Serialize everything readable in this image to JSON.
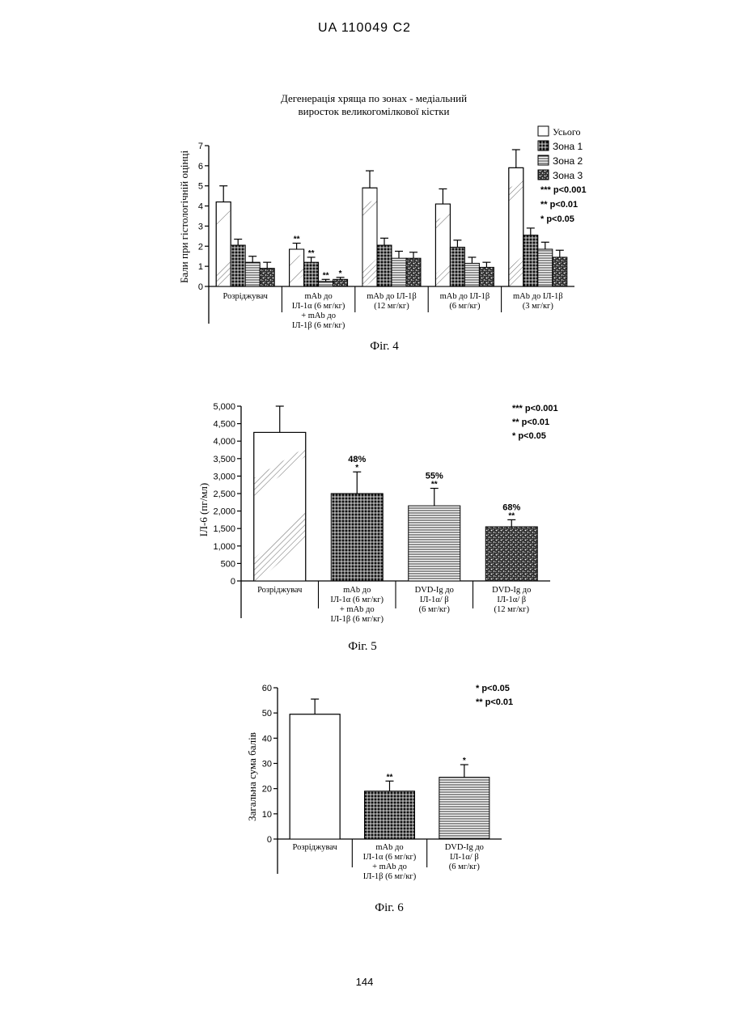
{
  "page": {
    "header": "UA   110049   C2",
    "page_number": "144"
  },
  "chart_data": [
    {
      "type": "bar",
      "title": "Дегенерація хряща по зонах - медіальний виросток великогомілкової кістки",
      "title_lines": [
        "Дегенерація хряща по зонах - медіальний",
        "виросток великогомілкової кістки"
      ],
      "ylabel": "Бали при гістологічній оцінці",
      "ylim": [
        0,
        7
      ],
      "yticks": [
        "0",
        "1",
        "2",
        "3",
        "4",
        "5",
        "6",
        "7"
      ],
      "caption": "Фіг. 4",
      "legend_position": "top-right",
      "groups": [
        {
          "label_lines": [
            "Розріджувач"
          ]
        },
        {
          "label_lines": [
            "mAb до",
            "ІЛ-1α (6 мг/кг)",
            "+ mAb до",
            "ІЛ-1β (6 мг/кг)"
          ]
        },
        {
          "label_lines": [
            "mAb до ІЛ-1β",
            "(12 мг/кг)"
          ]
        },
        {
          "label_lines": [
            "mAb до ІЛ-1β",
            "(6 мг/кг)"
          ]
        },
        {
          "label_lines": [
            "mAb до ІЛ-1β",
            "(3 мг/кг)"
          ]
        }
      ],
      "series": [
        {
          "name": "Усього",
          "values": [
            4.2,
            1.85,
            4.9,
            4.1,
            5.9
          ],
          "errors": [
            0.8,
            0.3,
            0.85,
            0.75,
            0.9
          ],
          "sig": [
            "",
            "**",
            "",
            "",
            ""
          ]
        },
        {
          "name": "Зона 1",
          "values": [
            2.05,
            1.2,
            2.05,
            1.95,
            2.55
          ],
          "errors": [
            0.3,
            0.25,
            0.35,
            0.35,
            0.35
          ],
          "sig": [
            "",
            "**",
            "",
            "",
            ""
          ]
        },
        {
          "name": "Зона 2",
          "values": [
            1.2,
            0.25,
            1.4,
            1.15,
            1.85
          ],
          "errors": [
            0.3,
            0.1,
            0.35,
            0.3,
            0.35
          ],
          "sig": [
            "",
            "**",
            "",
            "",
            ""
          ]
        },
        {
          "name": "Зона 3",
          "values": [
            0.9,
            0.35,
            1.4,
            0.95,
            1.45
          ],
          "errors": [
            0.3,
            0.1,
            0.3,
            0.25,
            0.35
          ],
          "sig": [
            "",
            "*",
            "",
            "",
            ""
          ]
        }
      ],
      "significance_legend": [
        "*** p<0.001",
        "** p<0.01",
        "* p<0.05"
      ]
    },
    {
      "type": "bar",
      "ylabel": "ІЛ-6 (пг/мл)",
      "ylim": [
        0,
        5000
      ],
      "yticks": [
        "0",
        "500",
        "1,000",
        "1,500",
        "2,000",
        "2,500",
        "3,000",
        "3,500",
        "4,000",
        "4,500",
        "5,000"
      ],
      "caption": "Фіг. 5",
      "categories": [
        {
          "label_lines": [
            "Розріджувач"
          ]
        },
        {
          "label_lines": [
            "mAb до",
            "ІЛ-1α (6 мг/кг)",
            "+ mAb до",
            "ІЛ-1β (6 мг/кг)"
          ]
        },
        {
          "label_lines": [
            "DVD-Ig до",
            "ІЛ-1α/ β",
            "(6 мг/кг)"
          ]
        },
        {
          "label_lines": [
            "DVD-Ig до",
            "ІЛ-1α/ β",
            "(12 мг/кг)"
          ]
        }
      ],
      "values": [
        4250,
        2500,
        2150,
        1550
      ],
      "errors": [
        750,
        620,
        500,
        200
      ],
      "sig": [
        "",
        "*",
        "**",
        "**"
      ],
      "percent_labels": [
        "",
        "48%",
        "55%",
        "68%"
      ],
      "significance_legend": [
        "*** p<0.001",
        "** p<0.01",
        "* p<0.05"
      ]
    },
    {
      "type": "bar",
      "ylabel": "Загальна сума балів",
      "ylim": [
        0,
        60
      ],
      "yticks": [
        "0",
        "10",
        "20",
        "30",
        "40",
        "50",
        "60"
      ],
      "caption": "Фіг. 6",
      "categories": [
        {
          "label_lines": [
            "Розріджувач"
          ]
        },
        {
          "label_lines": [
            "mAb до",
            "ІЛ-1α (6 мг/кг)",
            "+ mAb до",
            "ІЛ-1β (6 мг/кг)"
          ]
        },
        {
          "label_lines": [
            "DVD-Ig до",
            "ІЛ-1α/ β",
            "(6 мг/кг)"
          ]
        }
      ],
      "values": [
        49.5,
        19,
        24.5
      ],
      "errors": [
        6,
        4,
        5
      ],
      "sig": [
        "",
        "**",
        "*"
      ],
      "significance_legend": [
        "* p<0.05",
        "** p<0.01"
      ]
    }
  ]
}
